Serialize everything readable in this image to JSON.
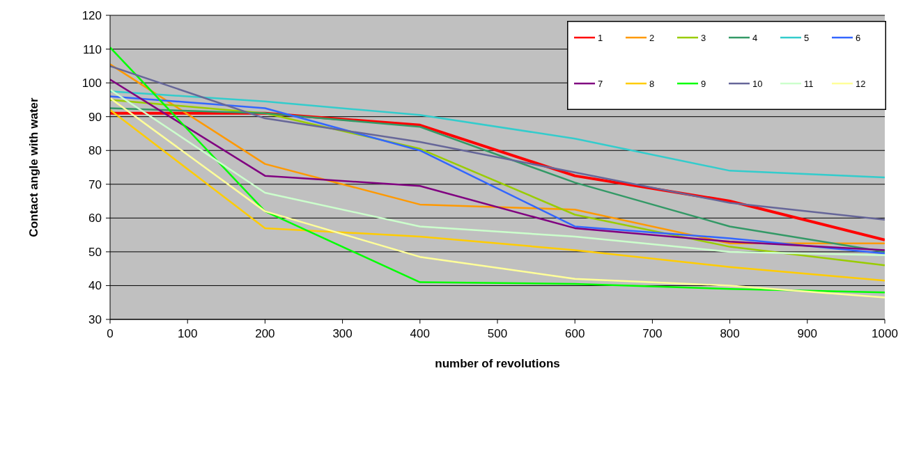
{
  "chart_data": {
    "type": "line",
    "xlabel": "number of revolutions",
    "ylabel": "Contact angle with water",
    "x": [
      0,
      200,
      400,
      600,
      800,
      1000
    ],
    "series": [
      {
        "name": "1",
        "color": "#ff0000",
        "values": [
          91,
          91,
          87.5,
          72.5,
          65,
          53.5
        ]
      },
      {
        "name": "2",
        "color": "#ff9900",
        "values": [
          105.5,
          76,
          64,
          62.5,
          52.5,
          52.5
        ]
      },
      {
        "name": "3",
        "color": "#99cc00",
        "values": [
          95,
          91,
          80.5,
          61,
          51.5,
          46
        ]
      },
      {
        "name": "4",
        "color": "#339966",
        "values": [
          92.5,
          91,
          87,
          70.5,
          57.5,
          50
        ]
      },
      {
        "name": "5",
        "color": "#33cccc",
        "values": [
          97.5,
          94.5,
          90.5,
          83.5,
          74,
          72
        ]
      },
      {
        "name": "6",
        "color": "#3366ff",
        "values": [
          96,
          92.5,
          80,
          57.5,
          54,
          49.5
        ]
      },
      {
        "name": "7",
        "color": "#800080",
        "values": [
          101,
          72.5,
          69.5,
          57,
          53,
          50.5
        ]
      },
      {
        "name": "8",
        "color": "#ffcc00",
        "values": [
          92,
          57,
          54.5,
          50.5,
          45.5,
          41.5
        ]
      },
      {
        "name": "9",
        "color": "#00ff00",
        "values": [
          110.5,
          62,
          41,
          40.5,
          39,
          38
        ]
      },
      {
        "name": "10",
        "color": "#666699",
        "values": [
          105,
          89.5,
          82.5,
          73.5,
          64.5,
          59.5
        ]
      },
      {
        "name": "11",
        "color": "#ccffcc",
        "values": [
          98,
          67.5,
          57.5,
          54.5,
          50,
          49
        ]
      },
      {
        "name": "12",
        "color": "#ffff99",
        "values": [
          95.5,
          62,
          48.5,
          42,
          40,
          36.5
        ]
      }
    ],
    "xlim": [
      0,
      1000
    ],
    "xticks": [
      0,
      100,
      200,
      300,
      400,
      500,
      600,
      700,
      800,
      900,
      1000
    ],
    "ylim": [
      30,
      120
    ],
    "yticks": [
      30,
      40,
      50,
      60,
      70,
      80,
      90,
      100,
      110,
      120
    ],
    "grid": "y",
    "legend": "top right",
    "marker": "none",
    "line_style": "solid"
  }
}
